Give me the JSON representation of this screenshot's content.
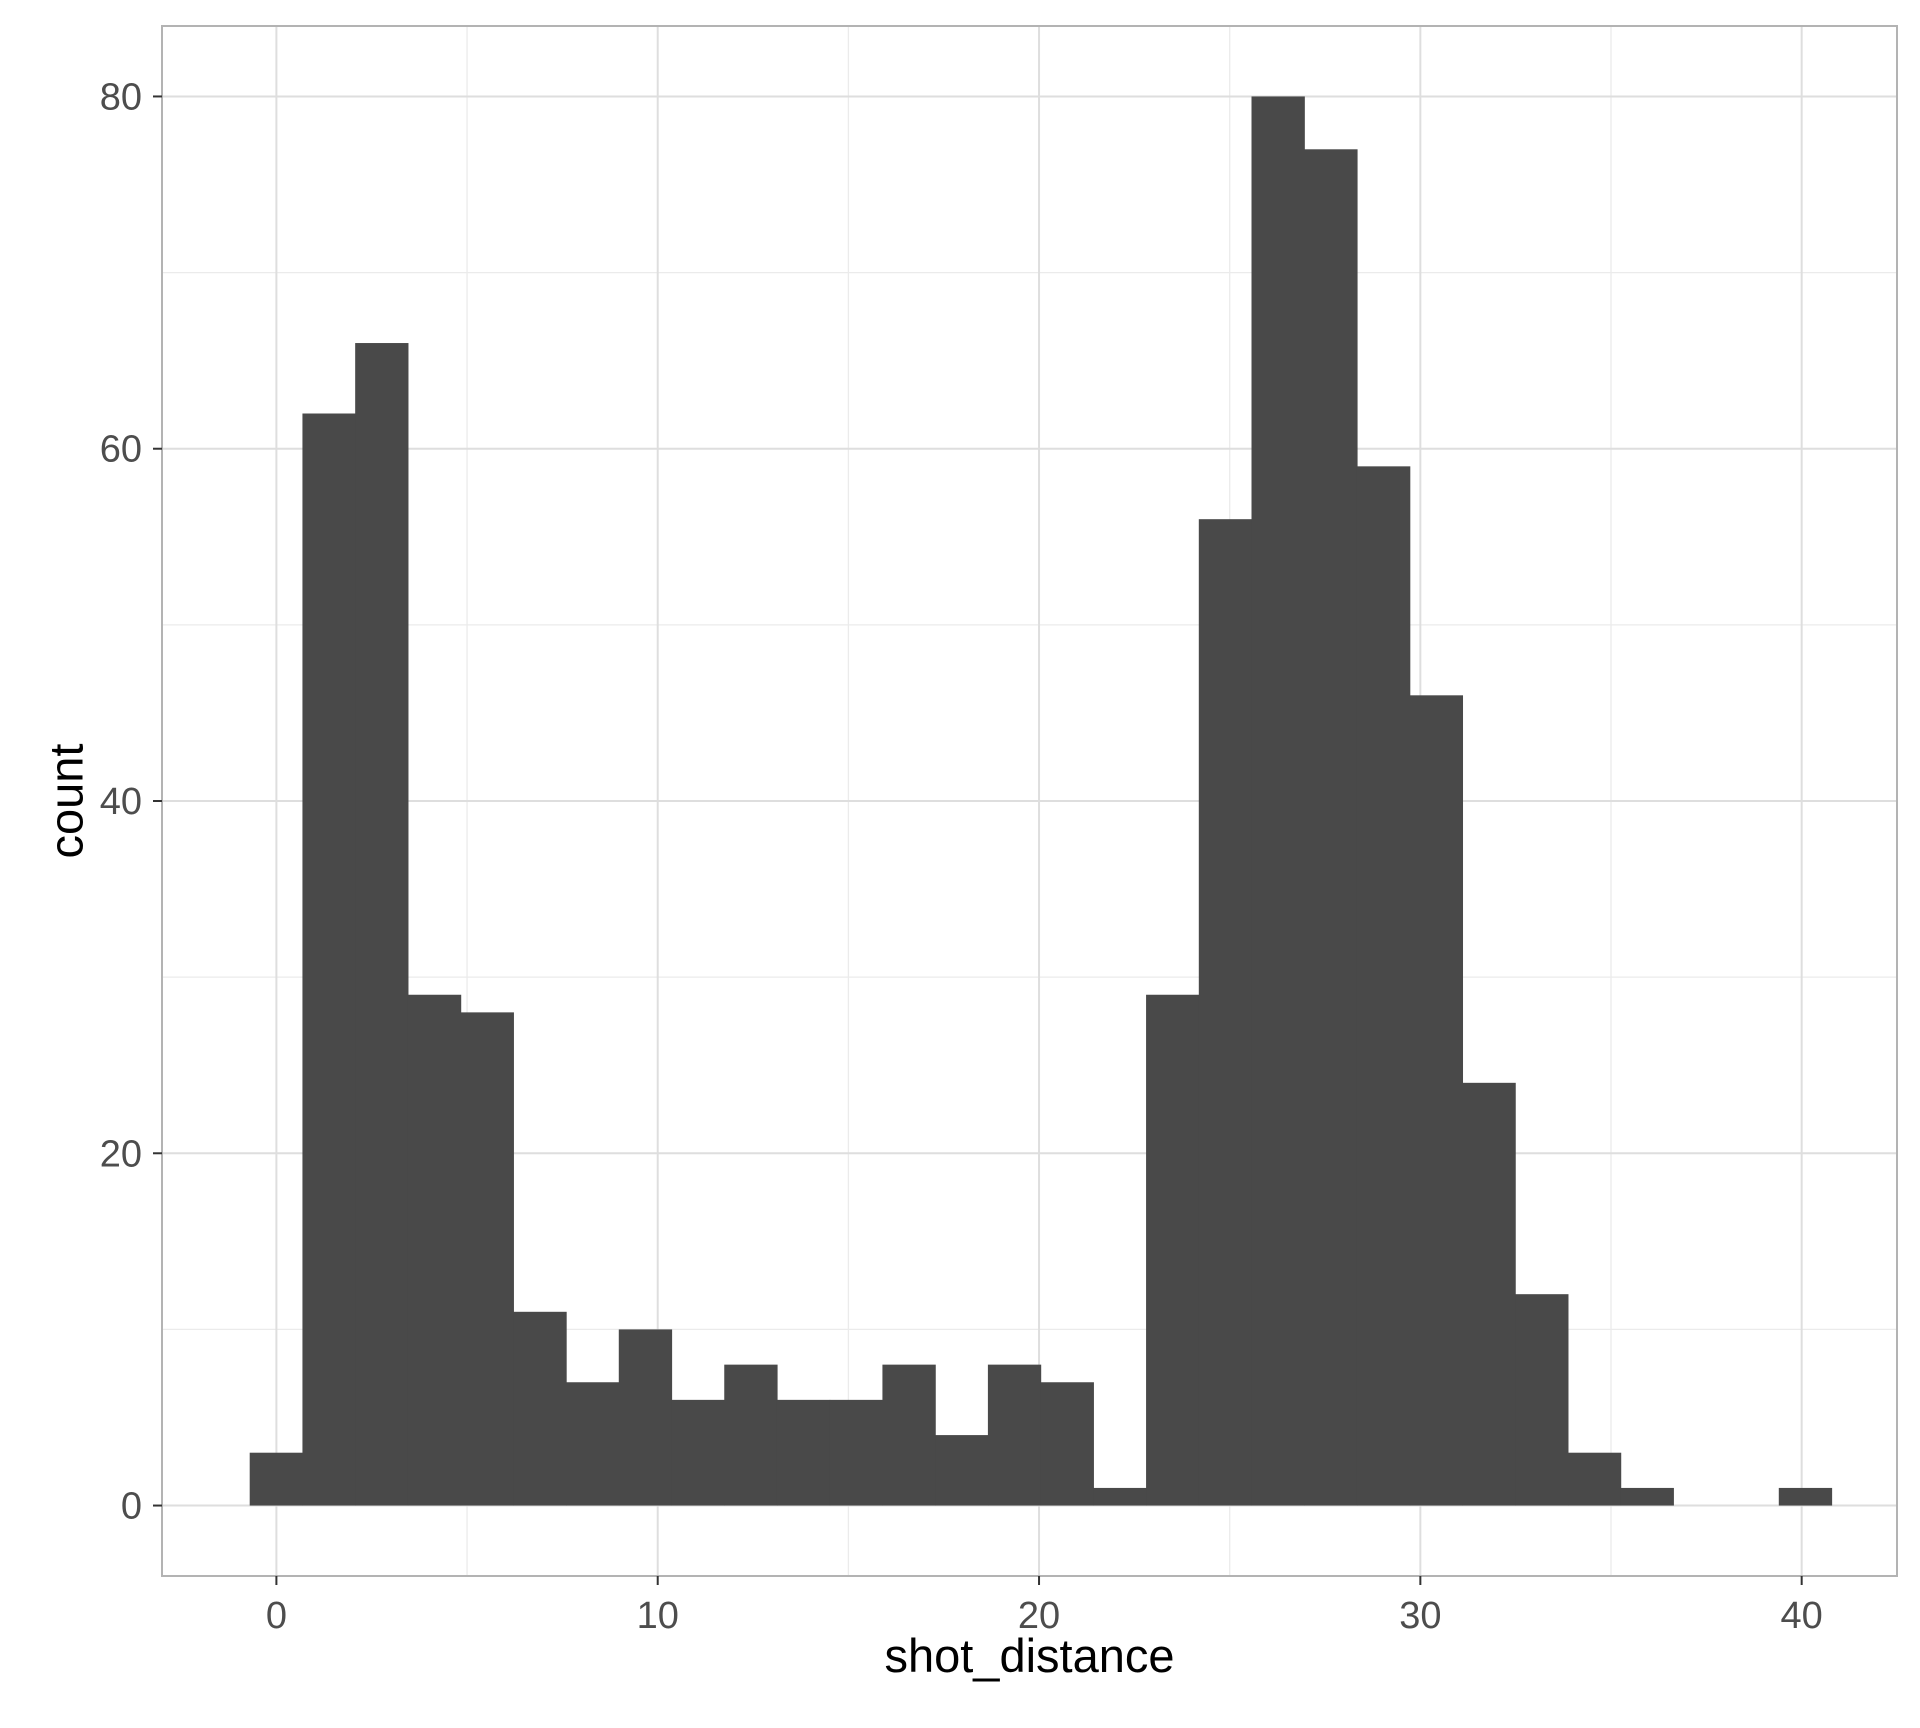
{
  "chart_data": {
    "type": "bar",
    "subtype": "histogram",
    "xlabel": "shot_distance",
    "ylabel": "count",
    "xlim": [
      -3,
      42.5
    ],
    "ylim": [
      -4,
      84
    ],
    "x_ticks": [
      0,
      10,
      20,
      30,
      40
    ],
    "y_ticks": [
      0,
      20,
      40,
      60,
      80
    ],
    "grid": true,
    "bar_color": "#494949",
    "bins": [
      {
        "x0": -0.7,
        "x1": 0.683,
        "count": 3
      },
      {
        "x0": 0.683,
        "x1": 2.066,
        "count": 62
      },
      {
        "x0": 2.066,
        "x1": 3.448,
        "count": 66
      },
      {
        "x0": 3.448,
        "x1": 4.831,
        "count": 29
      },
      {
        "x0": 4.831,
        "x1": 6.214,
        "count": 28
      },
      {
        "x0": 6.214,
        "x1": 7.597,
        "count": 11
      },
      {
        "x0": 7.597,
        "x1": 8.979,
        "count": 7
      },
      {
        "x0": 8.979,
        "x1": 10.362,
        "count": 10
      },
      {
        "x0": 10.362,
        "x1": 11.745,
        "count": 6
      },
      {
        "x0": 11.745,
        "x1": 13.128,
        "count": 8
      },
      {
        "x0": 13.128,
        "x1": 14.51,
        "count": 6
      },
      {
        "x0": 14.51,
        "x1": 15.893,
        "count": 6
      },
      {
        "x0": 15.893,
        "x1": 17.276,
        "count": 8
      },
      {
        "x0": 17.276,
        "x1": 18.659,
        "count": 4
      },
      {
        "x0": 18.659,
        "x1": 20.041,
        "count": 8
      },
      {
        "x0": 20.041,
        "x1": 21.424,
        "count": 7
      },
      {
        "x0": 21.424,
        "x1": 22.807,
        "count": 1
      },
      {
        "x0": 22.807,
        "x1": 24.19,
        "count": 29
      },
      {
        "x0": 24.19,
        "x1": 25.572,
        "count": 56
      },
      {
        "x0": 25.572,
        "x1": 26.955,
        "count": 80
      },
      {
        "x0": 26.955,
        "x1": 28.338,
        "count": 77
      },
      {
        "x0": 28.338,
        "x1": 29.721,
        "count": 59
      },
      {
        "x0": 29.721,
        "x1": 31.103,
        "count": 46
      },
      {
        "x0": 31.103,
        "x1": 32.486,
        "count": 24
      },
      {
        "x0": 32.486,
        "x1": 33.869,
        "count": 12
      },
      {
        "x0": 33.869,
        "x1": 35.252,
        "count": 3
      },
      {
        "x0": 35.252,
        "x1": 36.634,
        "count": 1
      },
      {
        "x0": 36.634,
        "x1": 38.017,
        "count": 0
      },
      {
        "x0": 38.017,
        "x1": 39.4,
        "count": 0
      },
      {
        "x0": 39.4,
        "x1": 40.783,
        "count": 1
      }
    ]
  }
}
